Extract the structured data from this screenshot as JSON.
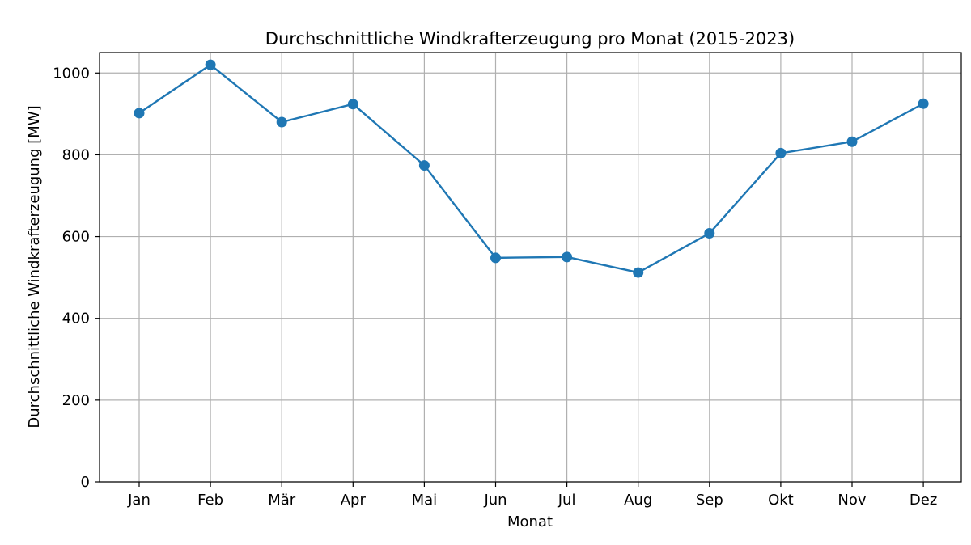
{
  "chart_data": {
    "type": "line",
    "title": "Durchschnittliche Windkrafterzeugung pro Monat (2015-2023)",
    "xlabel": "Monat",
    "ylabel": "Durchschnittliche Windkrafterzeugung [MW]",
    "categories": [
      "Jan",
      "Feb",
      "Mär",
      "Apr",
      "Mai",
      "Jun",
      "Jul",
      "Aug",
      "Sep",
      "Okt",
      "Nov",
      "Dez"
    ],
    "values": [
      902,
      1020,
      880,
      924,
      774,
      548,
      550,
      512,
      608,
      804,
      832,
      925
    ],
    "ylim": [
      0,
      1050
    ],
    "yticks": [
      0,
      200,
      400,
      600,
      800,
      1000
    ],
    "grid": true,
    "marker": "circle",
    "color": "#1f77b4"
  }
}
